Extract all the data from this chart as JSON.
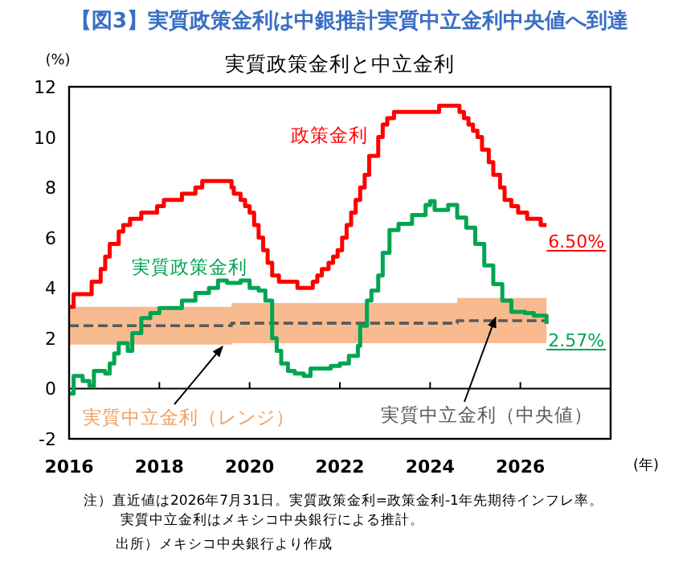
{
  "chart_data": {
    "type": "step",
    "title": "【図3】実質政策金利は中銀推計実質中立金利中央値へ到達",
    "subtitle": "実質政策金利と中立金利",
    "ylabel": "(%)",
    "xlabel": "(年)",
    "xlim": [
      2016,
      2028
    ],
    "xticks": [
      2016,
      2018,
      2020,
      2022,
      2024,
      2026
    ],
    "ylim": [
      -2,
      12
    ],
    "yticks": [
      -2,
      0,
      2,
      4,
      6,
      8,
      10,
      12
    ],
    "series": [
      {
        "name": "実質中立金利（中央値）",
        "color": "#595959",
        "line_style": "dashed",
        "x": [
          2016,
          2019.6,
          2024.6,
          2026.58
        ],
        "values": [
          2.5,
          2.6,
          2.7,
          2.7
        ],
        "lower": [
          1.75,
          1.8,
          1.8,
          1.8
        ],
        "upper": [
          3.25,
          3.4,
          3.6,
          3.6
        ]
      },
      {
        "name": "政策金利",
        "color": "#ff0000",
        "x": [
          2016,
          2016.1,
          2016.5,
          2016.7,
          2016.8,
          2016.9,
          2017.1,
          2017.2,
          2017.35,
          2017.6,
          2017.95,
          2018.1,
          2018.5,
          2018.8,
          2018.95,
          2019.6,
          2019.65,
          2019.8,
          2019.9,
          2020.0,
          2020.1,
          2020.2,
          2020.3,
          2020.4,
          2020.5,
          2020.65,
          2021.06,
          2021.4,
          2021.5,
          2021.6,
          2021.75,
          2021.85,
          2021.95,
          2022.05,
          2022.15,
          2022.25,
          2022.35,
          2022.45,
          2022.55,
          2022.65,
          2022.85,
          2022.95,
          2023.05,
          2023.2,
          2024.2,
          2024.65,
          2024.75,
          2024.85,
          2024.95,
          2025.05,
          2025.15,
          2025.3,
          2025.4,
          2025.55,
          2025.65,
          2025.8,
          2025.95,
          2026.15,
          2026.45,
          2026.58
        ],
        "values": [
          3.25,
          3.75,
          4.25,
          4.75,
          5.25,
          5.75,
          6.25,
          6.5,
          6.75,
          7.0,
          7.25,
          7.5,
          7.75,
          8.0,
          8.25,
          8.0,
          7.75,
          7.5,
          7.25,
          7.0,
          6.5,
          6.0,
          5.5,
          5.0,
          4.5,
          4.25,
          4.0,
          4.25,
          4.5,
          4.75,
          5.0,
          5.25,
          5.5,
          6.0,
          6.5,
          7.0,
          7.5,
          8.0,
          8.5,
          9.25,
          10.0,
          10.5,
          10.75,
          11.0,
          11.25,
          11.0,
          10.75,
          10.5,
          10.25,
          10.0,
          9.5,
          9.0,
          8.5,
          8.0,
          7.5,
          7.25,
          7.0,
          6.75,
          6.5,
          6.5
        ],
        "value_labels": [
          null,
          null,
          null,
          null,
          null,
          null,
          null,
          null,
          null,
          null,
          null,
          null,
          null,
          null,
          null,
          null,
          null,
          null,
          null,
          null,
          null,
          null,
          null,
          null,
          null,
          null,
          null,
          null,
          null,
          null,
          null,
          null,
          null,
          null,
          null,
          null,
          null,
          null,
          null,
          null,
          null,
          null,
          null,
          null,
          null,
          null,
          null,
          null,
          null,
          null,
          null,
          null,
          null,
          null,
          null,
          null,
          null,
          null,
          null,
          "6.50%"
        ]
      },
      {
        "name": "実質政策金利",
        "color": "#00a550",
        "x": [
          2016,
          2016.1,
          2016.3,
          2016.45,
          2016.55,
          2016.8,
          2016.9,
          2017.0,
          2017.1,
          2017.3,
          2017.4,
          2017.6,
          2017.8,
          2018.0,
          2018.3,
          2018.5,
          2018.8,
          2019.1,
          2019.3,
          2019.5,
          2019.8,
          2020.0,
          2020.2,
          2020.35,
          2020.5,
          2020.6,
          2020.7,
          2020.85,
          2021.0,
          2021.2,
          2021.35,
          2021.6,
          2021.8,
          2022.0,
          2022.2,
          2022.4,
          2022.45,
          2022.6,
          2022.7,
          2022.85,
          2022.95,
          2023.1,
          2023.3,
          2023.6,
          2023.9,
          2024.0,
          2024.1,
          2024.4,
          2024.6,
          2024.8,
          2025.0,
          2025.2,
          2025.4,
          2025.6,
          2025.8,
          2026.1,
          2026.3,
          2026.58
        ],
        "values": [
          -0.2,
          0.5,
          0.3,
          0.1,
          0.7,
          0.6,
          1.0,
          1.4,
          1.8,
          1.5,
          2.2,
          2.8,
          3.0,
          3.2,
          3.2,
          3.5,
          3.8,
          4.0,
          4.3,
          4.2,
          4.3,
          4.0,
          3.9,
          3.5,
          2.0,
          1.5,
          1.0,
          0.7,
          0.6,
          0.5,
          0.8,
          0.8,
          0.9,
          1.0,
          1.3,
          1.7,
          2.5,
          3.5,
          3.9,
          4.5,
          5.4,
          6.3,
          6.55,
          6.9,
          7.3,
          7.45,
          7.1,
          7.3,
          6.8,
          6.4,
          5.75,
          4.9,
          4.15,
          3.5,
          3.05,
          3.0,
          2.9,
          2.57
        ],
        "value_labels": [
          null,
          null,
          null,
          null,
          null,
          null,
          null,
          null,
          null,
          null,
          null,
          null,
          null,
          null,
          null,
          null,
          null,
          null,
          null,
          null,
          null,
          null,
          null,
          null,
          null,
          null,
          null,
          null,
          null,
          null,
          null,
          null,
          null,
          null,
          null,
          null,
          null,
          null,
          null,
          null,
          null,
          null,
          null,
          null,
          null,
          null,
          null,
          null,
          null,
          null,
          null,
          null,
          null,
          null,
          null,
          null,
          null,
          "2.57%"
        ]
      }
    ],
    "annotations": [
      {
        "text": "実質中立金利（レンジ）",
        "x": 2019.4,
        "y": 1.8
      },
      "注）直近値は2026年7月31日。実質政策金利=政策金利-1年先期待インフレ率。",
      "実質中立金利はメキシコ中央銀行による推計。",
      "出所）メキシコ中央銀行より作成"
    ]
  }
}
